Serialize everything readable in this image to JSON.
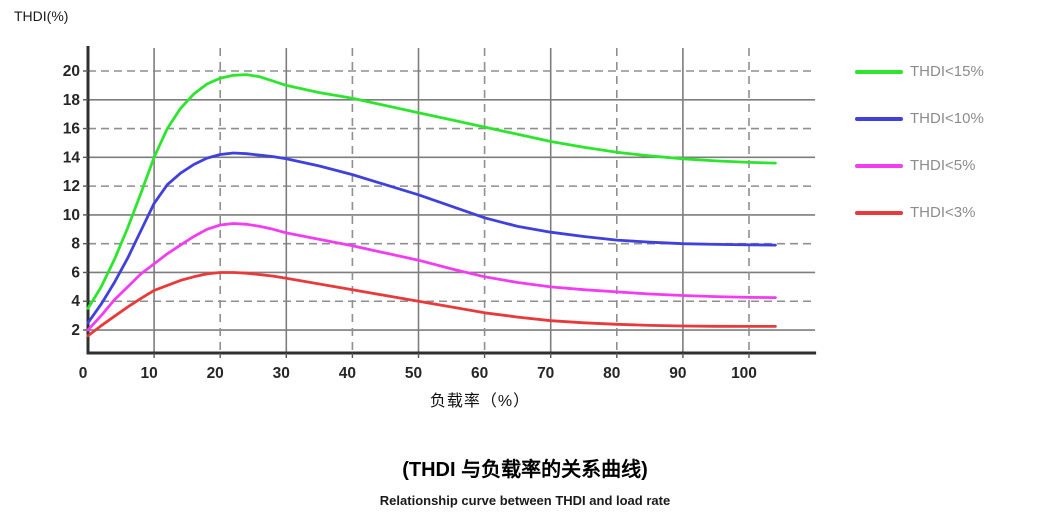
{
  "chart": {
    "y_axis_title": "THDI(%)",
    "x_axis_title": "负载率（%）"
  },
  "legend": {
    "items": [
      {
        "label": "THDI<15%",
        "color": "#2EE52E"
      },
      {
        "label": "THDI<10%",
        "color": "#4040DD"
      },
      {
        "label": "THDI<5%",
        "color": "#F23CF2"
      },
      {
        "label": "THDI<3%",
        "color": "#E83A3A"
      }
    ]
  },
  "caption": {
    "line1": "(THDI 与负载率的关系曲线)",
    "line2": "Relationship curve between THDI and load rate"
  },
  "chart_data": {
    "type": "line",
    "title": "",
    "xlabel": "负载率（%）",
    "ylabel": "THDI(%)",
    "xlim": [
      0,
      110
    ],
    "ylim": [
      0,
      21.5
    ],
    "x_ticks": [
      0,
      10,
      20,
      30,
      40,
      50,
      60,
      70,
      80,
      90,
      100
    ],
    "y_ticks": [
      2,
      4,
      6,
      8,
      10,
      12,
      14,
      16,
      18,
      20
    ],
    "grid": "horizontal and vertical, alternating solid/dashed",
    "legend_position": "right",
    "series": [
      {
        "name": "THDI<15%",
        "color": "#2EE52E",
        "points": [
          [
            0,
            3.5
          ],
          [
            2,
            5.0
          ],
          [
            4,
            6.9
          ],
          [
            6,
            9.1
          ],
          [
            8,
            11.5
          ],
          [
            10,
            14.0
          ],
          [
            12,
            16.0
          ],
          [
            14,
            17.4
          ],
          [
            16,
            18.4
          ],
          [
            18,
            19.1
          ],
          [
            20,
            19.5
          ],
          [
            22,
            19.7
          ],
          [
            24,
            19.75
          ],
          [
            26,
            19.6
          ],
          [
            28,
            19.3
          ],
          [
            30,
            19.0
          ],
          [
            35,
            18.5
          ],
          [
            40,
            18.1
          ],
          [
            45,
            17.6
          ],
          [
            50,
            17.1
          ],
          [
            55,
            16.6
          ],
          [
            60,
            16.1
          ],
          [
            65,
            15.6
          ],
          [
            70,
            15.1
          ],
          [
            75,
            14.7
          ],
          [
            80,
            14.35
          ],
          [
            85,
            14.1
          ],
          [
            90,
            13.9
          ],
          [
            95,
            13.75
          ],
          [
            100,
            13.65
          ],
          [
            104,
            13.6
          ]
        ]
      },
      {
        "name": "THDI<10%",
        "color": "#4040DD",
        "points": [
          [
            0,
            2.5
          ],
          [
            2,
            3.8
          ],
          [
            4,
            5.3
          ],
          [
            6,
            7.0
          ],
          [
            8,
            8.9
          ],
          [
            10,
            10.8
          ],
          [
            12,
            12.1
          ],
          [
            14,
            12.9
          ],
          [
            16,
            13.5
          ],
          [
            18,
            13.95
          ],
          [
            20,
            14.2
          ],
          [
            22,
            14.3
          ],
          [
            24,
            14.25
          ],
          [
            26,
            14.15
          ],
          [
            28,
            14.05
          ],
          [
            30,
            13.9
          ],
          [
            35,
            13.4
          ],
          [
            40,
            12.8
          ],
          [
            45,
            12.1
          ],
          [
            50,
            11.4
          ],
          [
            55,
            10.6
          ],
          [
            60,
            9.8
          ],
          [
            65,
            9.2
          ],
          [
            70,
            8.8
          ],
          [
            75,
            8.5
          ],
          [
            80,
            8.25
          ],
          [
            85,
            8.1
          ],
          [
            90,
            8.0
          ],
          [
            95,
            7.95
          ],
          [
            100,
            7.92
          ],
          [
            104,
            7.9
          ]
        ]
      },
      {
        "name": "THDI<5%",
        "color": "#F23CF2",
        "points": [
          [
            0,
            2.0
          ],
          [
            2,
            3.0
          ],
          [
            4,
            4.1
          ],
          [
            6,
            5.0
          ],
          [
            8,
            5.9
          ],
          [
            10,
            6.6
          ],
          [
            12,
            7.3
          ],
          [
            14,
            7.9
          ],
          [
            16,
            8.5
          ],
          [
            18,
            9.0
          ],
          [
            20,
            9.3
          ],
          [
            22,
            9.4
          ],
          [
            24,
            9.35
          ],
          [
            26,
            9.2
          ],
          [
            28,
            9.0
          ],
          [
            30,
            8.75
          ],
          [
            35,
            8.3
          ],
          [
            40,
            7.85
          ],
          [
            45,
            7.35
          ],
          [
            50,
            6.85
          ],
          [
            55,
            6.25
          ],
          [
            60,
            5.7
          ],
          [
            65,
            5.3
          ],
          [
            70,
            5.0
          ],
          [
            75,
            4.8
          ],
          [
            80,
            4.65
          ],
          [
            85,
            4.5
          ],
          [
            90,
            4.4
          ],
          [
            95,
            4.32
          ],
          [
            100,
            4.27
          ],
          [
            104,
            4.25
          ]
        ]
      },
      {
        "name": "THDI<3%",
        "color": "#E83A3A",
        "points": [
          [
            0,
            1.6
          ],
          [
            2,
            2.3
          ],
          [
            4,
            2.95
          ],
          [
            6,
            3.6
          ],
          [
            8,
            4.2
          ],
          [
            10,
            4.75
          ],
          [
            12,
            5.1
          ],
          [
            14,
            5.45
          ],
          [
            16,
            5.7
          ],
          [
            18,
            5.9
          ],
          [
            20,
            6.0
          ],
          [
            22,
            6.0
          ],
          [
            24,
            5.95
          ],
          [
            26,
            5.85
          ],
          [
            28,
            5.75
          ],
          [
            30,
            5.6
          ],
          [
            35,
            5.2
          ],
          [
            40,
            4.8
          ],
          [
            45,
            4.4
          ],
          [
            50,
            4.0
          ],
          [
            55,
            3.6
          ],
          [
            60,
            3.2
          ],
          [
            65,
            2.9
          ],
          [
            70,
            2.65
          ],
          [
            75,
            2.5
          ],
          [
            80,
            2.4
          ],
          [
            85,
            2.32
          ],
          [
            90,
            2.28
          ],
          [
            95,
            2.26
          ],
          [
            100,
            2.25
          ],
          [
            104,
            2.25
          ]
        ]
      }
    ]
  }
}
